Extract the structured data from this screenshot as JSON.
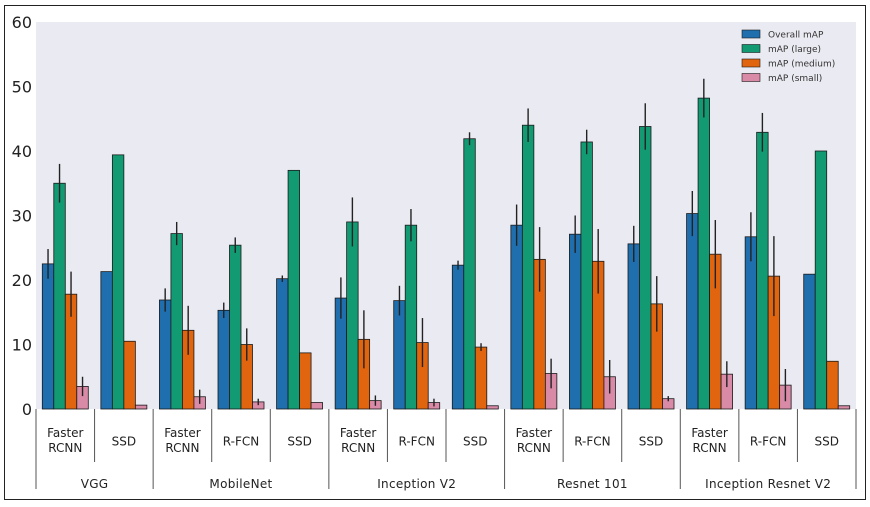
{
  "chart_data": {
    "type": "bar",
    "title": "",
    "xlabel": "",
    "ylabel": "",
    "ylim": [
      0,
      60
    ],
    "yticks": [
      0,
      10,
      20,
      30,
      40,
      50,
      60
    ],
    "grid": false,
    "legend_position": "top-right",
    "colors": [
      "#1f6fae",
      "#129b73",
      "#e0650e",
      "#d98aa6"
    ],
    "error_color": "#222222",
    "groups": [
      {
        "label": "VGG",
        "categories": [
          "Faster\nRCNN",
          "SSD"
        ]
      },
      {
        "label": "MobileNet",
        "categories": [
          "Faster\nRCNN",
          "R-FCN",
          "SSD"
        ]
      },
      {
        "label": "Inception V2",
        "categories": [
          "Faster\nRCNN",
          "R-FCN",
          "SSD"
        ]
      },
      {
        "label": "Resnet 101",
        "categories": [
          "Faster\nRCNN",
          "R-FCN",
          "SSD"
        ]
      },
      {
        "label": "Inception Resnet V2",
        "categories": [
          "Faster\nRCNN",
          "R-FCN",
          "SSD"
        ]
      }
    ],
    "series": [
      {
        "name": "Overall mAP",
        "values": [
          22.5,
          21.3,
          16.9,
          15.3,
          20.2,
          17.2,
          16.8,
          22.3,
          28.5,
          27.1,
          25.6,
          30.3,
          26.7,
          20.9
        ],
        "errors": [
          2.3,
          0,
          1.8,
          1.2,
          0.5,
          3.2,
          2.3,
          0.7,
          3.2,
          2.9,
          2.8,
          3.5,
          3.8,
          0
        ]
      },
      {
        "name": "mAP (large)",
        "values": [
          35.0,
          39.4,
          27.2,
          25.4,
          37.0,
          29.0,
          28.5,
          41.9,
          44.0,
          41.4,
          43.8,
          48.2,
          42.9,
          40.0
        ],
        "errors": [
          3.0,
          0,
          1.8,
          1.2,
          0,
          3.8,
          2.5,
          1.0,
          2.6,
          1.9,
          3.6,
          3.0,
          3.0,
          0
        ]
      },
      {
        "name": "mAP (medium)",
        "values": [
          17.8,
          10.5,
          12.2,
          10.0,
          8.7,
          10.8,
          10.3,
          9.6,
          23.2,
          22.9,
          16.3,
          24.0,
          20.6,
          7.4
        ],
        "errors": [
          3.5,
          0,
          3.8,
          2.5,
          0,
          4.5,
          3.8,
          0.6,
          5.0,
          5.0,
          4.3,
          5.3,
          6.2,
          0
        ]
      },
      {
        "name": "mAP (small)",
        "values": [
          3.5,
          0.6,
          1.9,
          1.1,
          1.0,
          1.3,
          1.0,
          0.5,
          5.5,
          5.0,
          1.6,
          5.4,
          3.7,
          0.5
        ],
        "errors": [
          1.5,
          0,
          1.1,
          0.5,
          0,
          0.8,
          0.6,
          0,
          2.3,
          2.6,
          0.4,
          2.0,
          2.5,
          0
        ]
      }
    ]
  }
}
